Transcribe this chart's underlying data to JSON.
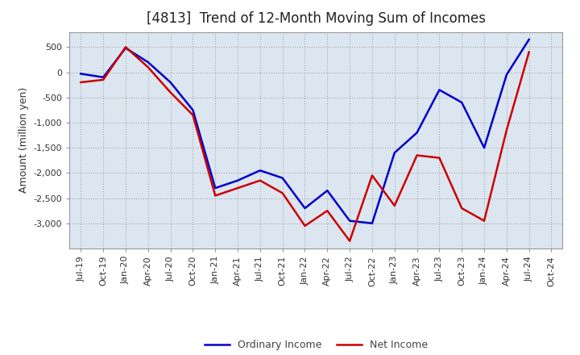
{
  "title": "[4813]  Trend of 12-Month Moving Sum of Incomes",
  "ylabel": "Amount (million yen)",
  "background_color": "#ffffff",
  "grid_color": "#aaaaaa",
  "plot_bg_color": "#dce6f0",
  "ordinary_income_color": "#0000cc",
  "net_income_color": "#cc0000",
  "line_width": 1.8,
  "x_labels": [
    "Jul-19",
    "Oct-19",
    "Jan-20",
    "Apr-20",
    "Jul-20",
    "Oct-20",
    "Jan-21",
    "Apr-21",
    "Jul-21",
    "Oct-21",
    "Jan-22",
    "Apr-22",
    "Jul-22",
    "Oct-22",
    "Jan-23",
    "Apr-23",
    "Jul-23",
    "Oct-23",
    "Jan-24",
    "Apr-24",
    "Jul-24",
    "Oct-24"
  ],
  "ordinary_income": [
    -30,
    -100,
    480,
    200,
    -200,
    -750,
    -2300,
    -2150,
    -1950,
    -2100,
    -2700,
    -2350,
    -2950,
    -3000,
    -1600,
    -1200,
    -350,
    -600,
    -1500,
    -50,
    650,
    null
  ],
  "net_income": [
    -200,
    -150,
    500,
    100,
    -400,
    -850,
    -2450,
    -2300,
    -2150,
    -2400,
    -3050,
    -2750,
    -3350,
    -2050,
    -2650,
    -1650,
    -1700,
    -2700,
    -2950,
    -1150,
    400,
    null
  ],
  "ylim": [
    -3500,
    800
  ],
  "yticks": [
    -3000,
    -2500,
    -2000,
    -1500,
    -1000,
    -500,
    0,
    500
  ],
  "legend_labels": [
    "Ordinary Income",
    "Net Income"
  ],
  "title_fontsize": 12,
  "label_fontsize": 9,
  "tick_fontsize": 8
}
